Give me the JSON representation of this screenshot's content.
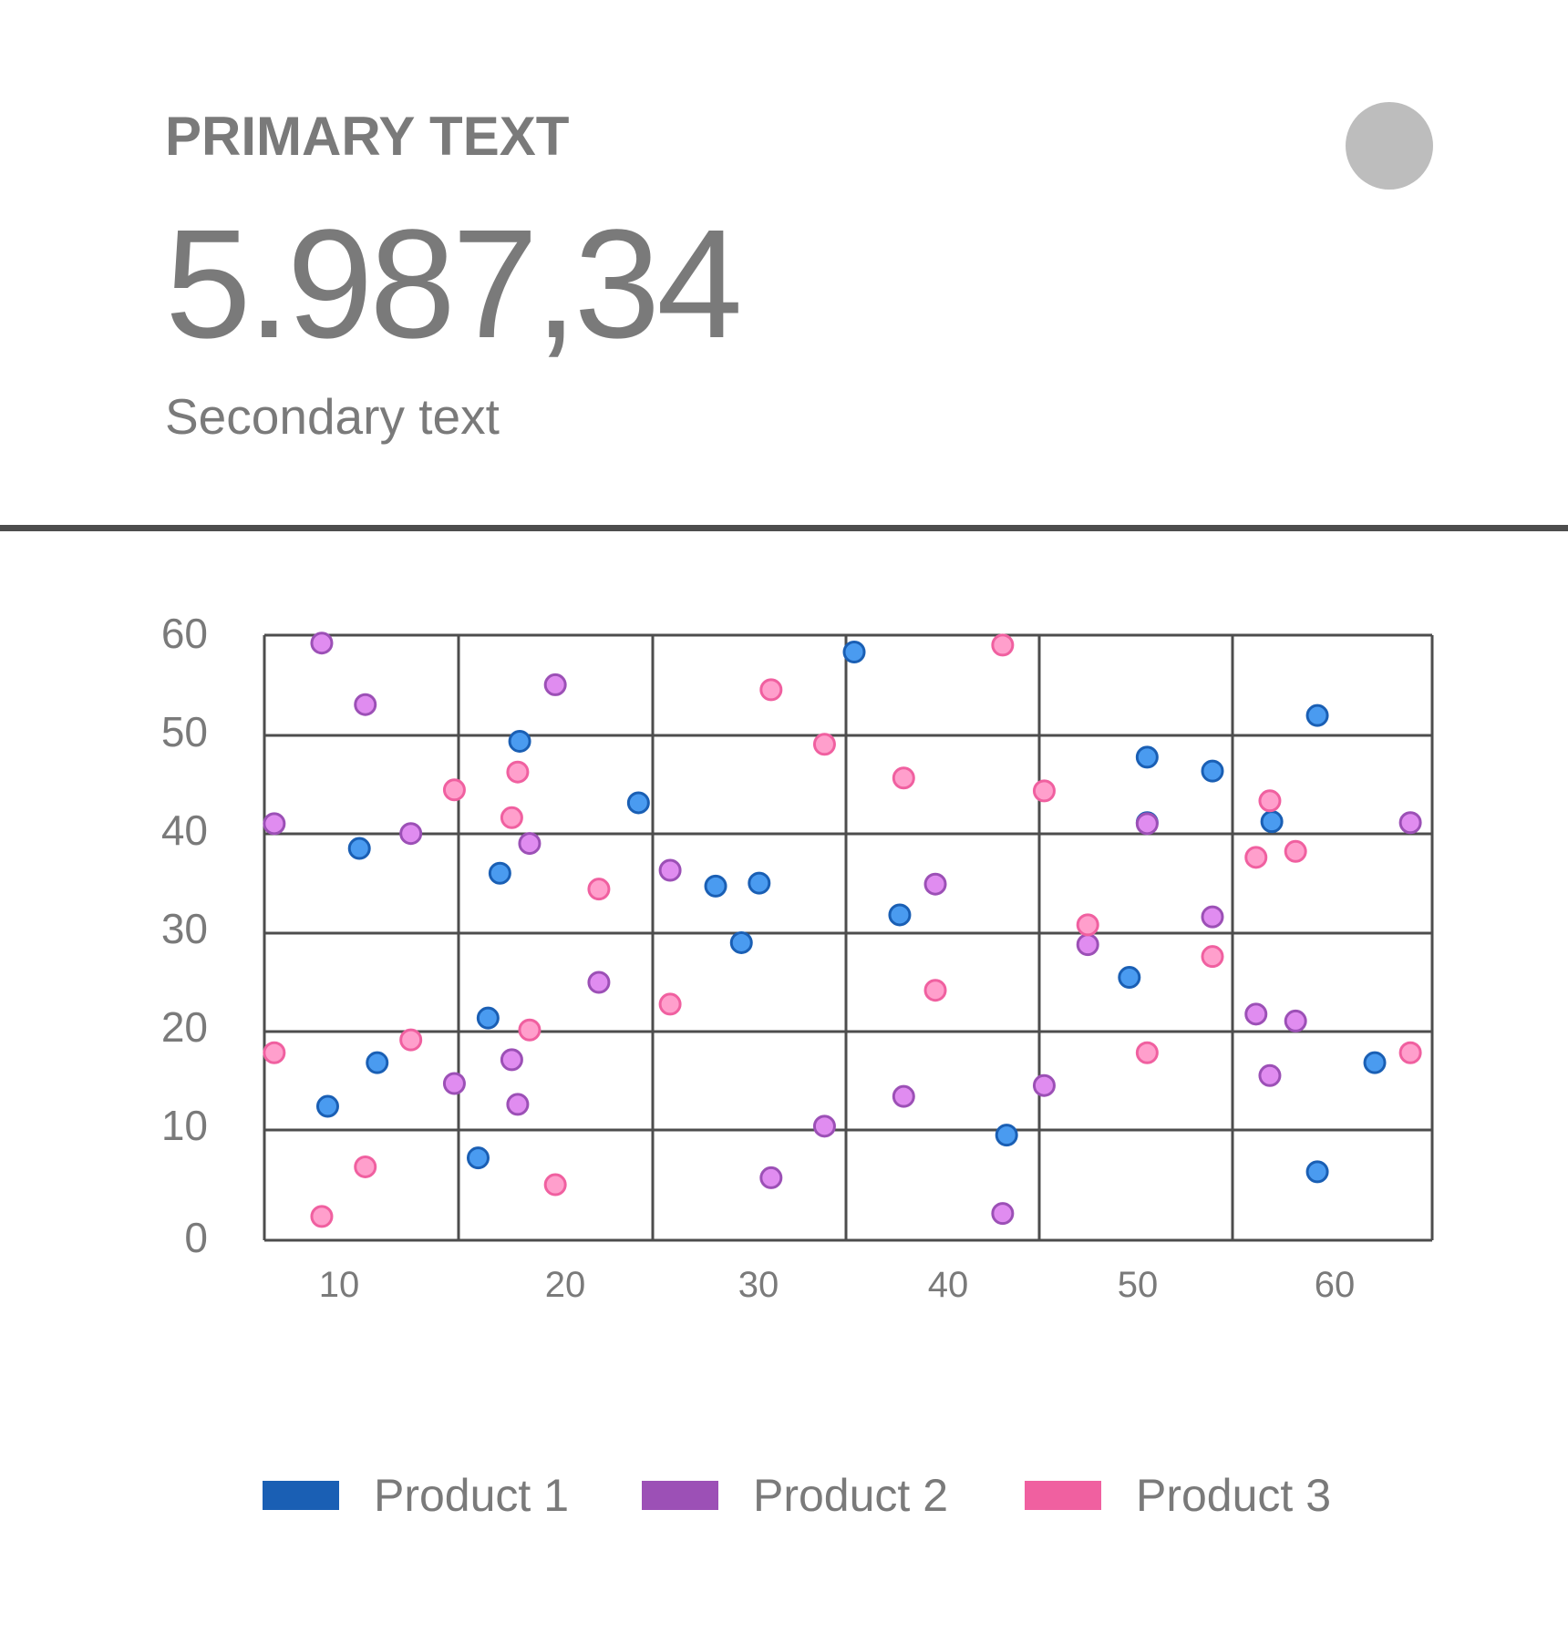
{
  "card": {
    "primary_text": "PRIMARY TEXT",
    "value": "5.987,34",
    "secondary_text": "Secondary text",
    "avatar_color": "#bdbdbd"
  },
  "chart_data": {
    "type": "scatter",
    "x_ticks": [
      10,
      20,
      30,
      40,
      50,
      60
    ],
    "y_ticks": [
      0,
      10,
      20,
      30,
      40,
      50,
      60
    ],
    "xlim": [
      6,
      65
    ],
    "ylim": [
      0,
      61
    ],
    "grid": true,
    "legend_position": "bottom",
    "series": [
      {
        "name": "Product 1",
        "color": "#1a5fb4",
        "fill": "#4a9bf0",
        "points": [
          [
            9.2,
            13.5
          ],
          [
            10.8,
            39.5
          ],
          [
            11.7,
            17.9
          ],
          [
            17.3,
            22.4
          ],
          [
            17.9,
            37.0
          ],
          [
            18.9,
            50.3
          ],
          [
            24.9,
            44.1
          ],
          [
            28.8,
            35.7
          ],
          [
            30.1,
            30.0
          ],
          [
            31.0,
            36.0
          ],
          [
            35.8,
            59.3
          ],
          [
            38.1,
            32.8
          ],
          [
            43.5,
            10.6
          ],
          [
            49.7,
            26.5
          ],
          [
            50.6,
            48.7
          ],
          [
            50.6,
            42.1
          ],
          [
            53.9,
            47.3
          ],
          [
            56.9,
            42.2
          ],
          [
            59.2,
            52.9
          ],
          [
            62.1,
            17.9
          ],
          [
            59.2,
            6.9
          ],
          [
            16.8,
            8.3
          ]
        ]
      },
      {
        "name": "Product 2",
        "color": "#9c50b6",
        "fill": "#e08cf0",
        "points": [
          [
            8.9,
            60.2
          ],
          [
            11.1,
            54.0
          ],
          [
            13.4,
            41.0
          ],
          [
            6.5,
            42.0
          ],
          [
            15.6,
            15.8
          ],
          [
            18.5,
            18.2
          ],
          [
            18.8,
            13.7
          ],
          [
            19.4,
            40.0
          ],
          [
            20.7,
            56.0
          ],
          [
            22.9,
            26.0
          ],
          [
            26.5,
            37.3
          ],
          [
            31.6,
            6.3
          ],
          [
            34.3,
            11.5
          ],
          [
            38.3,
            14.5
          ],
          [
            39.9,
            35.9
          ],
          [
            43.3,
            2.7
          ],
          [
            45.4,
            15.6
          ],
          [
            47.6,
            29.8
          ],
          [
            50.6,
            42.0
          ],
          [
            53.9,
            32.6
          ],
          [
            56.1,
            22.8
          ],
          [
            56.8,
            16.6
          ],
          [
            58.1,
            22.1
          ],
          [
            63.9,
            42.1
          ]
        ]
      },
      {
        "name": "Product 3",
        "color": "#f060a0",
        "fill": "#ff9fcc",
        "points": [
          [
            6.5,
            18.9
          ],
          [
            8.9,
            2.4
          ],
          [
            11.1,
            7.4
          ],
          [
            13.4,
            20.2
          ],
          [
            15.6,
            45.4
          ],
          [
            18.5,
            42.6
          ],
          [
            18.8,
            47.2
          ],
          [
            19.4,
            21.2
          ],
          [
            20.7,
            5.6
          ],
          [
            22.9,
            35.4
          ],
          [
            26.5,
            23.8
          ],
          [
            31.6,
            55.5
          ],
          [
            34.3,
            50.0
          ],
          [
            38.3,
            46.6
          ],
          [
            39.9,
            25.2
          ],
          [
            43.3,
            60.0
          ],
          [
            45.4,
            45.3
          ],
          [
            47.6,
            31.8
          ],
          [
            50.6,
            18.9
          ],
          [
            53.9,
            28.6
          ],
          [
            56.1,
            38.6
          ],
          [
            56.8,
            44.3
          ],
          [
            58.1,
            39.2
          ],
          [
            63.9,
            18.9
          ]
        ]
      }
    ]
  }
}
